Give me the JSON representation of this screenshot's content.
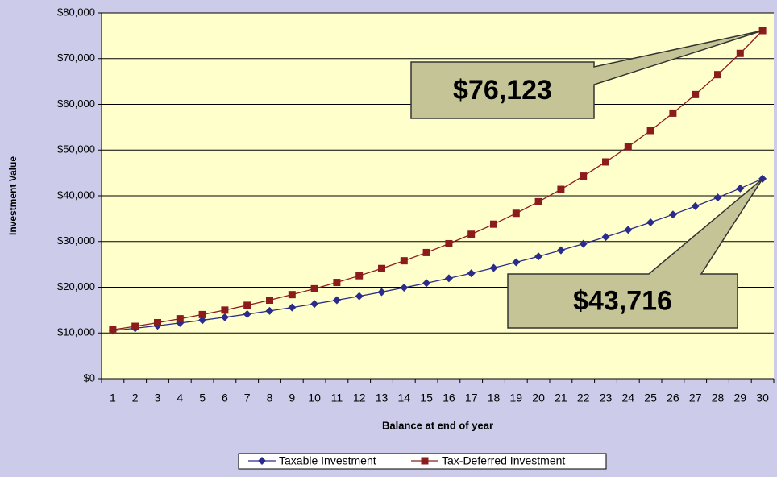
{
  "chart_data": {
    "type": "line",
    "y_axis_label": "Investment Value",
    "x_axis_label": "Balance at end of year",
    "categories": [
      "1",
      "2",
      "3",
      "4",
      "5",
      "6",
      "7",
      "8",
      "9",
      "10",
      "11",
      "12",
      "13",
      "14",
      "15",
      "16",
      "17",
      "18",
      "19",
      "20",
      "21",
      "22",
      "23",
      "24",
      "25",
      "26",
      "27",
      "28",
      "29",
      "30"
    ],
    "series": [
      {
        "name": "Taxable Investment",
        "color": "#2b2b8c",
        "marker": "diamond",
        "values": [
          10504,
          11034,
          11590,
          12174,
          12788,
          13433,
          14110,
          14821,
          15568,
          16353,
          17177,
          18043,
          18952,
          19907,
          20910,
          21964,
          23071,
          24234,
          25455,
          26738,
          28086,
          29501,
          30988,
          32550,
          34190,
          35913,
          37723,
          39624,
          41618,
          43716
        ]
      },
      {
        "name": "Tax-Deferred Investment",
        "color": "#8c1c1c",
        "marker": "square",
        "values": [
          10700,
          11449,
          12250,
          13108,
          14026,
          15007,
          16058,
          17182,
          18385,
          19672,
          21049,
          22522,
          24098,
          25785,
          27590,
          29522,
          31588,
          33799,
          36165,
          38697,
          41406,
          44304,
          47405,
          50724,
          54274,
          58074,
          62139,
          66488,
          71143,
          76123
        ]
      }
    ],
    "ylim": [
      0,
      80000
    ],
    "yticks": [
      {
        "value": 0,
        "label": "$0"
      },
      {
        "value": 10000,
        "label": "$10,000"
      },
      {
        "value": 20000,
        "label": "$20,000"
      },
      {
        "value": 30000,
        "label": "$30,000"
      },
      {
        "value": 40000,
        "label": "$40,000"
      },
      {
        "value": 50000,
        "label": "$50,000"
      },
      {
        "value": 60000,
        "label": "$60,000"
      },
      {
        "value": 70000,
        "label": "$70,000"
      },
      {
        "value": 80000,
        "label": "$80,000"
      }
    ],
    "grid": true,
    "legend": "bottom",
    "annotations": [
      {
        "text": "$76,123",
        "series": 1,
        "index": 29
      },
      {
        "text": "$43,716",
        "series": 0,
        "index": 29
      }
    ]
  }
}
